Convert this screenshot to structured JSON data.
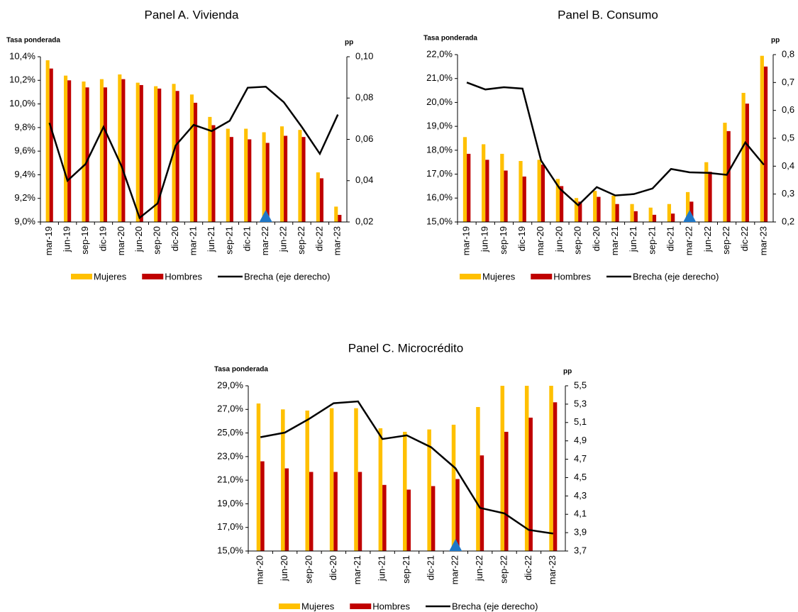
{
  "chart_data": [
    {
      "type": "bar",
      "title": "Panel A. Vivienda",
      "y_label": "Tasa ponderada",
      "y2_label": "pp",
      "categories": [
        "mar-19",
        "jun-19",
        "sep-19",
        "dic-19",
        "mar-20",
        "jun-20",
        "sep-20",
        "dic-20",
        "mar-21",
        "jun-21",
        "sep-21",
        "dic-21",
        "mar-22",
        "jun-22",
        "sep-22",
        "dic-22",
        "mar-23"
      ],
      "series": [
        {
          "name": "Mujeres",
          "color": "#FFC000",
          "values": [
            10.37,
            10.24,
            10.19,
            10.21,
            10.25,
            10.18,
            10.15,
            10.17,
            10.08,
            9.89,
            9.79,
            9.79,
            9.76,
            9.81,
            9.78,
            9.42,
            9.13
          ]
        },
        {
          "name": "Hombres",
          "color": "#C00000",
          "values": [
            10.3,
            10.2,
            10.14,
            10.14,
            10.21,
            10.16,
            10.13,
            10.11,
            10.01,
            9.82,
            9.72,
            9.7,
            9.67,
            9.73,
            9.72,
            9.37,
            9.06
          ]
        },
        {
          "name": "Brecha (eje derecho)",
          "color": "#000000",
          "type": "line",
          "axis": "y2",
          "values": [
            0.068,
            0.04,
            0.048,
            0.066,
            0.047,
            0.022,
            0.029,
            0.057,
            0.067,
            0.064,
            0.069,
            0.085,
            0.0855,
            0.078,
            0.066,
            0.053,
            0.072
          ]
        }
      ],
      "ylim": [
        9.0,
        10.4
      ],
      "yticks": [
        {
          "value": 9.0,
          "label": "9,0%"
        },
        {
          "value": 9.2,
          "label": "9,2%"
        },
        {
          "value": 9.4,
          "label": "9,4%"
        },
        {
          "value": 9.6,
          "label": "9,6%"
        },
        {
          "value": 9.8,
          "label": "9,8%"
        },
        {
          "value": 10.0,
          "label": "10,0%"
        },
        {
          "value": 10.2,
          "label": "10,2%"
        },
        {
          "value": 10.4,
          "label": "10,4%"
        }
      ],
      "y2lim": [
        0.02,
        0.1
      ],
      "y2ticks": [
        {
          "value": 0.02,
          "label": "0,02"
        },
        {
          "value": 0.04,
          "label": "0,04"
        },
        {
          "value": 0.06,
          "label": "0,06"
        },
        {
          "value": 0.08,
          "label": "0,08"
        },
        {
          "value": 0.1,
          "label": "0,10"
        }
      ]
    },
    {
      "type": "bar",
      "title": "Panel B. Consumo",
      "y_label": "Tasa ponderada",
      "y2_label": "pp",
      "categories": [
        "mar-19",
        "jun-19",
        "sep-19",
        "dic-19",
        "mar-20",
        "jun-20",
        "sep-20",
        "dic-20",
        "mar-21",
        "jun-21",
        "sep-21",
        "dic-21",
        "mar-22",
        "jun-22",
        "sep-22",
        "dic-22",
        "mar-23"
      ],
      "series": [
        {
          "name": "Mujeres",
          "color": "#FFC000",
          "values": [
            18.55,
            18.25,
            17.85,
            17.55,
            17.6,
            16.8,
            16.0,
            16.3,
            16.1,
            15.75,
            15.6,
            15.75,
            16.25,
            17.5,
            19.15,
            20.4,
            21.95
          ]
        },
        {
          "name": "Hombres",
          "color": "#C00000",
          "values": [
            17.85,
            17.6,
            17.15,
            16.9,
            17.4,
            16.5,
            15.85,
            16.05,
            15.75,
            15.45,
            15.3,
            15.35,
            15.85,
            17.1,
            18.8,
            19.95,
            21.5
          ]
        },
        {
          "name": "Brecha (eje derecho)",
          "color": "#000000",
          "type": "line",
          "axis": "y2",
          "values": [
            0.7,
            0.675,
            0.683,
            0.678,
            0.42,
            0.32,
            0.26,
            0.325,
            0.295,
            0.3,
            0.32,
            0.39,
            0.378,
            0.376,
            0.369,
            0.485,
            0.405
          ]
        }
      ],
      "ylim": [
        15,
        22
      ],
      "yticks": [
        {
          "value": 15,
          "label": "15,0%"
        },
        {
          "value": 16,
          "label": "16,0%"
        },
        {
          "value": 17,
          "label": "17,0%"
        },
        {
          "value": 18,
          "label": "18,0%"
        },
        {
          "value": 19,
          "label": "19,0%"
        },
        {
          "value": 20,
          "label": "20,0%"
        },
        {
          "value": 21,
          "label": "21,0%"
        },
        {
          "value": 22,
          "label": "22,0%"
        }
      ],
      "y2lim": [
        0.2,
        0.8
      ],
      "y2ticks": [
        {
          "value": 0.2,
          "label": "0,2"
        },
        {
          "value": 0.3,
          "label": "0,3"
        },
        {
          "value": 0.4,
          "label": "0,4"
        },
        {
          "value": 0.5,
          "label": "0,5"
        },
        {
          "value": 0.6,
          "label": "0,6"
        },
        {
          "value": 0.7,
          "label": "0,7"
        },
        {
          "value": 0.8,
          "label": "0,8"
        }
      ]
    },
    {
      "type": "bar",
      "title": "Panel C. Microcrédito",
      "y_label": "Tasa ponderada",
      "y2_label": "pp",
      "categories": [
        "mar-20",
        "jun-20",
        "sep-20",
        "dic-20",
        "mar-21",
        "jun-21",
        "sep-21",
        "dic-21",
        "mar-22",
        "jun-22",
        "sep-22",
        "dic-22",
        "mar-23"
      ],
      "series": [
        {
          "name": "Mujeres",
          "color": "#FFC000",
          "values": [
            27.5,
            27.0,
            26.9,
            27.1,
            27.1,
            25.4,
            25.1,
            25.3,
            25.7,
            27.2,
            29.0,
            29.0,
            29.0
          ]
        },
        {
          "name": "Hombres",
          "color": "#C00000",
          "values": [
            22.6,
            22.0,
            21.7,
            21.7,
            21.7,
            20.6,
            20.2,
            20.5,
            21.1,
            23.1,
            25.1,
            26.3,
            27.6
          ]
        },
        {
          "name": "Brecha (eje derecho)",
          "color": "#000000",
          "type": "line",
          "axis": "y2",
          "values": [
            4.94,
            4.99,
            5.14,
            5.31,
            5.33,
            4.92,
            4.96,
            4.83,
            4.6,
            4.17,
            4.11,
            3.93,
            3.89
          ]
        }
      ],
      "ylim": [
        15,
        29
      ],
      "yticks": [
        {
          "value": 15,
          "label": "15,0%"
        },
        {
          "value": 17,
          "label": "17,0%"
        },
        {
          "value": 19,
          "label": "19,0%"
        },
        {
          "value": 21,
          "label": "21,0%"
        },
        {
          "value": 23,
          "label": "23,0%"
        },
        {
          "value": 25,
          "label": "25,0%"
        },
        {
          "value": 27,
          "label": "27,0%"
        },
        {
          "value": 29,
          "label": "29,0%"
        }
      ],
      "y2lim": [
        3.7,
        5.5
      ],
      "y2ticks": [
        {
          "value": 3.7,
          "label": "3,7"
        },
        {
          "value": 3.9,
          "label": "3,9"
        },
        {
          "value": 4.1,
          "label": "4,1"
        },
        {
          "value": 4.3,
          "label": "4,3"
        },
        {
          "value": 4.5,
          "label": "4,5"
        },
        {
          "value": 4.7,
          "label": "4,7"
        },
        {
          "value": 4.9,
          "label": "4,9"
        },
        {
          "value": 5.1,
          "label": "5,1"
        },
        {
          "value": 5.3,
          "label": "5,3"
        },
        {
          "value": 5.5,
          "label": "5,5"
        }
      ]
    }
  ]
}
